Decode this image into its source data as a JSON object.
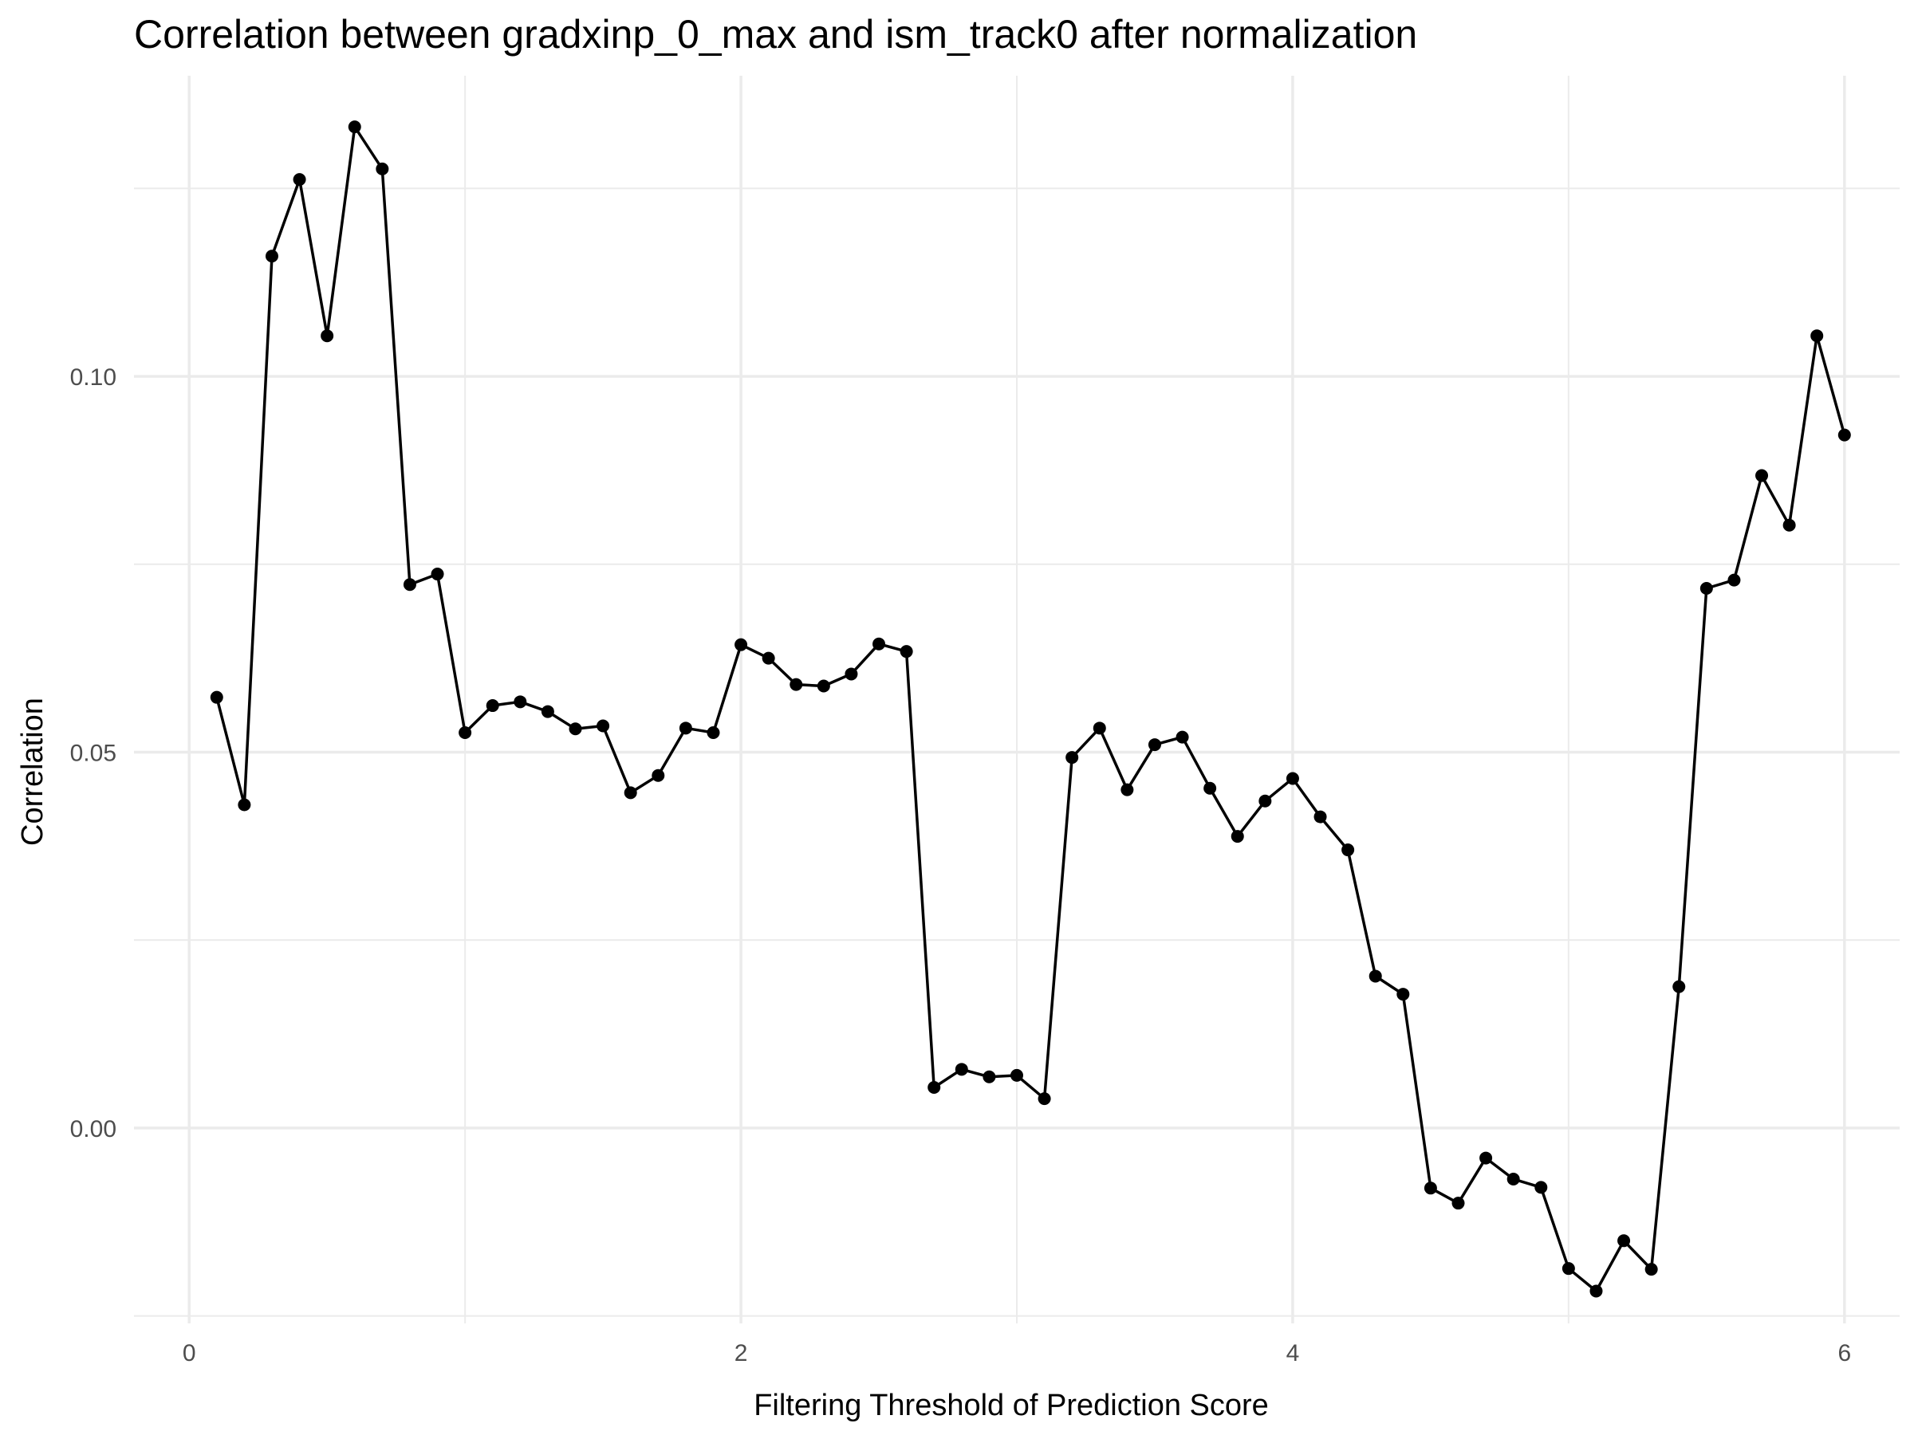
{
  "chart_data": {
    "type": "line",
    "title": "Correlation between gradxinp_0_max and ism_track0 after normalization",
    "xlabel": "Filtering Threshold of Prediction Score",
    "ylabel": "Correlation",
    "xlim": [
      -0.2,
      6.2
    ],
    "ylim": [
      -0.026,
      0.14
    ],
    "x_ticks": [
      0,
      2,
      4,
      6
    ],
    "x_tick_labels": [
      "0",
      "2",
      "4",
      "6"
    ],
    "y_ticks": [
      0.0,
      0.05,
      0.1
    ],
    "y_tick_labels": [
      "0.00",
      "0.05",
      "0.10"
    ],
    "x_minor_ticks": [
      1,
      3,
      5
    ],
    "y_minor_ticks": [
      -0.025,
      0.025,
      0.075,
      0.125
    ],
    "grid": true,
    "legend": "none",
    "line_color": "#000000",
    "grid_color": "#ebebeb",
    "series": [
      {
        "x": [
          0.1,
          0.2,
          0.3,
          0.4,
          0.5,
          0.6,
          0.7,
          0.8,
          0.9,
          1.0,
          1.1,
          1.2,
          1.3,
          1.4,
          1.5,
          1.6,
          1.7,
          1.8,
          1.9,
          2.0,
          2.1,
          2.2,
          2.3,
          2.4,
          2.5,
          2.6,
          2.7,
          2.8,
          2.9,
          3.0,
          3.1,
          3.2,
          3.3,
          3.4,
          3.5,
          3.6,
          3.7,
          3.8,
          3.9,
          4.0,
          4.1,
          4.2,
          4.3,
          4.4,
          4.5,
          4.6,
          4.7,
          4.8,
          4.9,
          5.0,
          5.1,
          5.2,
          5.3,
          5.4,
          5.5,
          5.6,
          5.7,
          5.8,
          5.9,
          6.0
        ],
        "values": [
          0.0573,
          0.043,
          0.116,
          0.1262,
          0.1054,
          0.1332,
          0.1276,
          0.0723,
          0.0737,
          0.0526,
          0.0562,
          0.0567,
          0.0554,
          0.0531,
          0.0535,
          0.0446,
          0.0469,
          0.0532,
          0.0526,
          0.0643,
          0.0625,
          0.059,
          0.0588,
          0.0604,
          0.0644,
          0.0634,
          0.0054,
          0.0078,
          0.0068,
          0.007,
          0.0039,
          0.0493,
          0.0532,
          0.045,
          0.051,
          0.052,
          0.0452,
          0.0388,
          0.0435,
          0.0465,
          0.0414,
          0.037,
          0.0202,
          0.0178,
          -0.008,
          -0.01,
          -0.004,
          -0.0068,
          -0.0079,
          -0.0187,
          -0.0217,
          -0.015,
          -0.0188,
          0.0188,
          0.0718,
          0.0729,
          0.0868,
          0.0802,
          0.1054,
          0.0922
        ]
      }
    ]
  }
}
